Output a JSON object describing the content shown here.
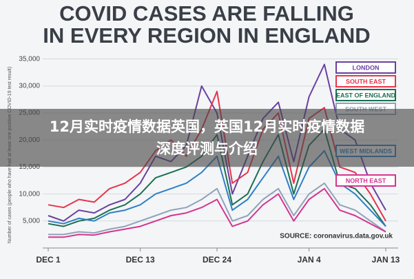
{
  "chart_data": {
    "type": "line",
    "title": "COVID CASES ARE FALLING",
    "subtitle": "IN EVERY REGION IN ENGLAND",
    "y_label": "Number of cases (people who have had at least one positive COVID-19 test result)",
    "source": "SOURCE: coronavirus.data.gov.uk",
    "x": [
      "DEC 1",
      null,
      null,
      null,
      null,
      null,
      "DEC 13",
      null,
      null,
      null,
      null,
      "DEC 24",
      null,
      null,
      null,
      null,
      null,
      "JAN 4",
      null,
      null,
      null,
      null,
      "JAN 13"
    ],
    "ylim": [
      0,
      37000
    ],
    "yticks": [
      {
        "value": 5000,
        "label": "5,000"
      },
      {
        "value": 10000,
        "label": "10,000"
      },
      {
        "value": 15000,
        "label": "15,000"
      },
      {
        "value": 20000,
        "label": "20,000"
      },
      {
        "value": 25000,
        "label": "25,000"
      },
      {
        "value": 30000,
        "label": "30,000"
      },
      {
        "value": 35000,
        "label": "35,000"
      }
    ],
    "grid": true,
    "series": [
      {
        "name": "LONDON",
        "color": "#6b3fa0",
        "values": [
          6000,
          5000,
          7000,
          6500,
          8000,
          9000,
          12000,
          17000,
          16000,
          19000,
          30000,
          25000,
          10000,
          17000,
          24000,
          27000,
          16000,
          28000,
          34000,
          22000,
          20000,
          12000,
          7000
        ]
      },
      {
        "name": "SOUTH EAST",
        "color": "#e8334a",
        "values": [
          8000,
          7500,
          9000,
          8500,
          11000,
          12000,
          14000,
          18000,
          20000,
          17000,
          22000,
          29000,
          12000,
          14000,
          22000,
          25000,
          12000,
          24000,
          26000,
          15000,
          14000,
          10000,
          5000
        ]
      },
      {
        "name": "EAST OF ENGLAND",
        "color": "#1b6e52",
        "values": [
          4500,
          4000,
          5000,
          5500,
          7000,
          8000,
          10000,
          13000,
          14000,
          15000,
          17000,
          21000,
          8000,
          10000,
          16000,
          21000,
          10000,
          19000,
          22000,
          12000,
          11000,
          8000,
          4000
        ]
      },
      {
        "name": "SOUTH WEST",
        "color": "#8fa3b8",
        "values": [
          2500,
          2500,
          3000,
          2800,
          3500,
          4000,
          5000,
          6000,
          7000,
          7500,
          9000,
          11000,
          5000,
          6000,
          9000,
          11000,
          6000,
          10000,
          12000,
          8000,
          7000,
          5000,
          3000
        ]
      },
      {
        "name": "WEST MIDLANDS",
        "color": "#2f7fc4",
        "values": [
          5000,
          4500,
          5500,
          5000,
          6500,
          7000,
          8000,
          10000,
          11000,
          12000,
          14000,
          17000,
          7000,
          9000,
          13000,
          17000,
          9000,
          15000,
          18000,
          12000,
          10000,
          7000,
          4000
        ]
      },
      {
        "name": "NORTH EAST",
        "color": "#d6338f",
        "values": [
          2000,
          2000,
          2500,
          2400,
          3000,
          3500,
          4000,
          5000,
          6000,
          6500,
          7500,
          9000,
          4000,
          5000,
          8000,
          10000,
          5000,
          9000,
          11000,
          7000,
          6000,
          4500,
          3000
        ]
      }
    ]
  },
  "overlay": {
    "text": "12月实时疫情数据英国，英国12月实时疫情数据深度评测与介绍"
  }
}
